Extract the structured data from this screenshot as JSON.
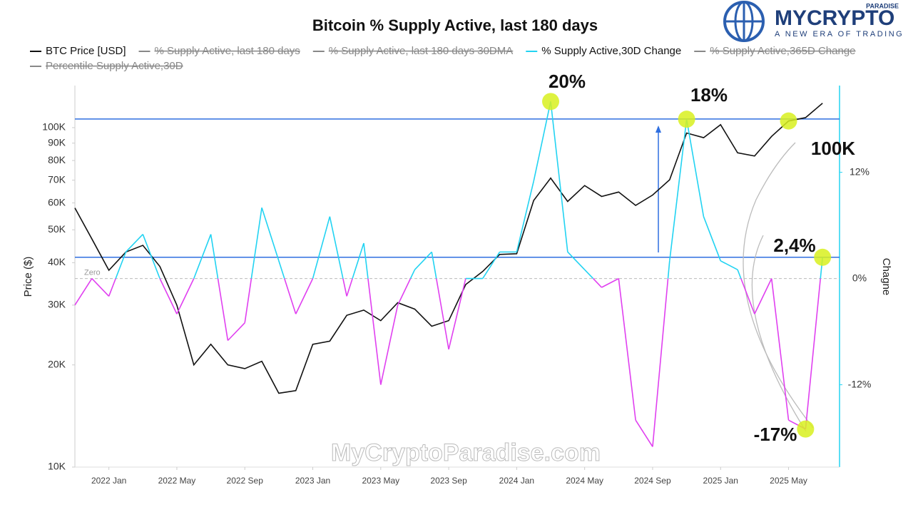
{
  "chart_data": {
    "type": "line",
    "title": "Bitcoin % Supply Active, last 180 days",
    "logo": {
      "name": "MYCRYPTO",
      "badge": "PARADISE",
      "tagline": "A NEW ERA OF TRADING"
    },
    "watermark": "MyCryptoParadise.com",
    "y_label": "Price ($)",
    "y2_label": "Chagne",
    "x": [
      "2021-11",
      "2021-12",
      "2022-01",
      "2022-02",
      "2022-03",
      "2022-04",
      "2022-05",
      "2022-06",
      "2022-07",
      "2022-08",
      "2022-09",
      "2022-10",
      "2022-11",
      "2022-12",
      "2023-01",
      "2023-02",
      "2023-03",
      "2023-04",
      "2023-05",
      "2023-06",
      "2023-07",
      "2023-08",
      "2023-09",
      "2023-10",
      "2023-11",
      "2023-12",
      "2024-01",
      "2024-02",
      "2024-03",
      "2024-04",
      "2024-05",
      "2024-06",
      "2024-07",
      "2024-08",
      "2024-09",
      "2024-10",
      "2024-11",
      "2024-12",
      "2025-01",
      "2025-02",
      "2025-03",
      "2025-04",
      "2025-05",
      "2025-06",
      "2025-07"
    ],
    "xlim": [
      "2021-11",
      "2025-08"
    ],
    "xticks": [
      {
        "value": "2022-01",
        "label": "2022 Jan"
      },
      {
        "value": "2022-05",
        "label": "2022 May"
      },
      {
        "value": "2022-09",
        "label": "2022 Sep"
      },
      {
        "value": "2023-01",
        "label": "2023 Jan"
      },
      {
        "value": "2023-05",
        "label": "2023 May"
      },
      {
        "value": "2023-09",
        "label": "2023 Sep"
      },
      {
        "value": "2024-01",
        "label": "2024 Jan"
      },
      {
        "value": "2024-05",
        "label": "2024 May"
      },
      {
        "value": "2024-09",
        "label": "2024 Sep"
      },
      {
        "value": "2025-01",
        "label": "2025 Jan"
      },
      {
        "value": "2025-05",
        "label": "2025 May"
      }
    ],
    "ylim": [
      10000,
      133000
    ],
    "log_y": true,
    "yticks": [
      {
        "value": 10000,
        "label": "10K"
      },
      {
        "value": 20000,
        "label": "20K"
      },
      {
        "value": 30000,
        "label": "30K"
      },
      {
        "value": 40000,
        "label": "40K"
      },
      {
        "value": 50000,
        "label": "50K"
      },
      {
        "value": 60000,
        "label": "60K"
      },
      {
        "value": 70000,
        "label": "70K"
      },
      {
        "value": 80000,
        "label": "80K"
      },
      {
        "value": 90000,
        "label": "90K"
      },
      {
        "value": 100000,
        "label": "100K"
      }
    ],
    "y2lim": [
      -21.3,
      21.8
    ],
    "y2ticks": [
      {
        "value": -12,
        "label": "-12%"
      },
      {
        "value": 0,
        "label": "0%"
      },
      {
        "value": 12,
        "label": "12%"
      }
    ],
    "zero_label": "Zero",
    "series": [
      {
        "name": "BTC Price [USD]",
        "color": "#111111",
        "values": [
          58000,
          47000,
          38000,
          43000,
          45000,
          39000,
          30000,
          20000,
          23000,
          20000,
          19500,
          20500,
          16500,
          16800,
          23000,
          23500,
          28000,
          29000,
          27000,
          30500,
          29200,
          26000,
          27000,
          34500,
          37700,
          42300,
          42500,
          61000,
          71000,
          60600,
          67500,
          62700,
          64600,
          59000,
          63300,
          70200,
          96400,
          93400,
          102000,
          84300,
          82500,
          94200,
          104600,
          107000,
          118000
        ]
      },
      {
        "name": "% Supply Active, last 180 days",
        "color": "#888888",
        "hidden": true
      },
      {
        "name": "% Supply Active, last 180 days 30DMA",
        "color": "#888888",
        "hidden": true
      },
      {
        "name": "% Supply Active,30D Change",
        "color": "#22d3f2",
        "negative_color": "#e040f0",
        "axis": "y2",
        "values": [
          -3,
          0,
          -2,
          3,
          5,
          0,
          -4,
          0,
          5,
          -7,
          -5,
          8,
          2,
          -4,
          0,
          7,
          -2,
          4,
          -12,
          -3,
          1,
          3,
          -8,
          0,
          0,
          3,
          3,
          11,
          20,
          3,
          1,
          -1,
          0,
          -16,
          -19,
          2,
          18,
          7,
          2,
          1,
          -4,
          0,
          -16,
          -17,
          2.4
        ]
      },
      {
        "name": "% Supply Active,365D Change",
        "color": "#888888",
        "hidden": true
      },
      {
        "name": "Percentile Supply Active,30D",
        "color": "#888888",
        "hidden": true
      }
    ],
    "reference_lines": [
      {
        "value": 106000,
        "axis": "y",
        "color": "#2f6fe0"
      },
      {
        "value": 2.4,
        "axis": "y2",
        "color": "#2f6fe0"
      }
    ],
    "annotations": [
      "20%",
      "18%",
      "100K",
      "2,4%",
      "-17%"
    ]
  }
}
